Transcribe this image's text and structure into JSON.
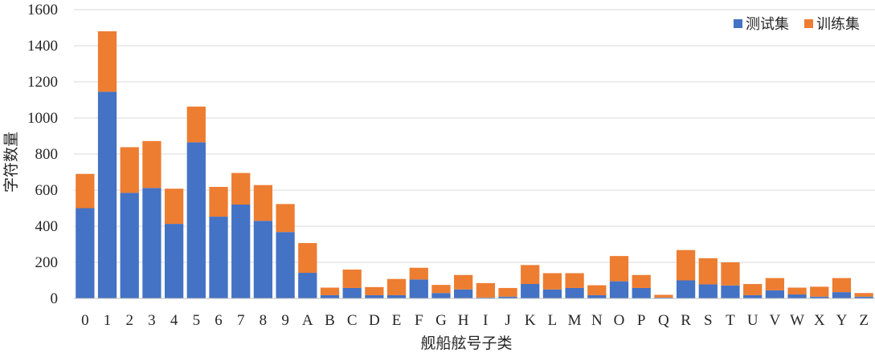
{
  "chart_data": {
    "type": "bar",
    "stacked": true,
    "title": "",
    "xlabel": "舰船舷号子类",
    "ylabel": "字符数量",
    "ylim": [
      0,
      1600
    ],
    "yticks": [
      0,
      200,
      400,
      600,
      800,
      1000,
      1200,
      1400,
      1600
    ],
    "grid": true,
    "legend_position": "top-right",
    "categories": [
      "0",
      "1",
      "2",
      "3",
      "4",
      "5",
      "6",
      "7",
      "8",
      "9",
      "A",
      "B",
      "C",
      "D",
      "E",
      "F",
      "G",
      "H",
      "I",
      "J",
      "K",
      "L",
      "M",
      "N",
      "O",
      "P",
      "Q",
      "R",
      "S",
      "T",
      "U",
      "V",
      "W",
      "X",
      "Y",
      "Z"
    ],
    "series": [
      {
        "name": "测试集",
        "color": "#4472C4",
        "values": [
          500,
          1145,
          585,
          612,
          413,
          865,
          453,
          520,
          430,
          368,
          142,
          18,
          58,
          18,
          18,
          105,
          30,
          50,
          5,
          10,
          80,
          50,
          58,
          18,
          95,
          58,
          5,
          100,
          78,
          72,
          18,
          45,
          22,
          10,
          35,
          10
        ]
      },
      {
        "name": "训练集",
        "color": "#ED7D31",
        "values": [
          190,
          335,
          253,
          260,
          195,
          198,
          165,
          175,
          198,
          155,
          165,
          42,
          102,
          45,
          90,
          65,
          45,
          80,
          80,
          48,
          105,
          90,
          82,
          55,
          140,
          72,
          15,
          168,
          145,
          128,
          62,
          68,
          38,
          55,
          78,
          20
        ]
      }
    ]
  }
}
